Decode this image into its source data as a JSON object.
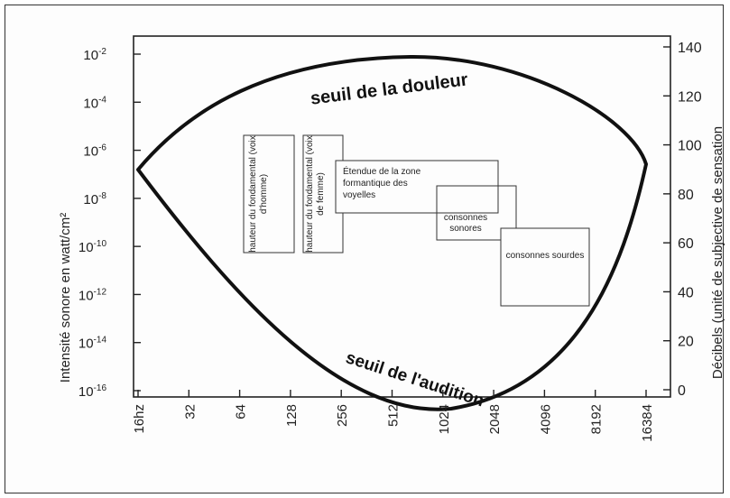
{
  "chart_data": {
    "type": "area",
    "title": "",
    "ylabel_left": "Intensité sonore en watt/cm²",
    "ylabel_right": "Décibels (unité de subjective de sensation",
    "x_ticks": [
      "16hz",
      "32",
      "64",
      "128",
      "256",
      "512",
      "1024",
      "2048",
      "4096",
      "8192",
      "16384"
    ],
    "y_left_ticks": [
      {
        "base": "10",
        "exp": "-2"
      },
      {
        "base": "10",
        "exp": "-4"
      },
      {
        "base": "10",
        "exp": "-6"
      },
      {
        "base": "10",
        "exp": "-8"
      },
      {
        "base": "10",
        "exp": "-10"
      },
      {
        "base": "10",
        "exp": "-12"
      },
      {
        "base": "10",
        "exp": "-14"
      },
      {
        "base": "10",
        "exp": "-16"
      }
    ],
    "y_right_ticks": [
      "140",
      "120",
      "100",
      "80",
      "60",
      "40",
      "20",
      "0"
    ],
    "curves": {
      "upper_label": "seuil de la douleur",
      "lower_label": "seuil de l'audition"
    },
    "boxes": [
      {
        "label": "hauteur du fondamental (voix d'homme)",
        "orientation": "vertical"
      },
      {
        "label": "hauteur du fondamental (voix de femme)",
        "orientation": "vertical"
      },
      {
        "label": "Étendue de la zone formantique des voyelles",
        "orientation": "horizontal"
      },
      {
        "label": "consonnes sonores",
        "orientation": "horizontal"
      },
      {
        "label": "consonnes sourdes",
        "orientation": "horizontal"
      }
    ]
  }
}
